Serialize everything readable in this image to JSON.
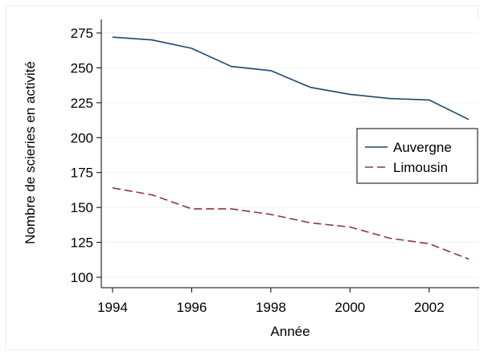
{
  "chart_data": {
    "type": "line",
    "title": "",
    "xlabel": "Année",
    "ylabel": "Nombre de scieries en activité",
    "xlim": [
      1994,
      2003
    ],
    "ylim": [
      100,
      275
    ],
    "x_ticks": [
      1994,
      1996,
      1998,
      2000,
      2002
    ],
    "y_ticks": [
      100,
      125,
      150,
      175,
      200,
      225,
      250,
      275
    ],
    "grid": true,
    "legend_position": "right",
    "x": [
      1994,
      1995,
      1996,
      1997,
      1998,
      1999,
      2000,
      2001,
      2002,
      2003
    ],
    "series": [
      {
        "name": "Auvergne",
        "values": [
          272,
          270,
          264,
          251,
          248,
          236,
          231,
          228,
          227,
          213
        ],
        "color": "#1a476f",
        "style": "solid"
      },
      {
        "name": "Limousin",
        "values": [
          164,
          159,
          149,
          149,
          145,
          139,
          136,
          128,
          124,
          113
        ],
        "color": "#90353b",
        "style": "dashed"
      }
    ]
  }
}
